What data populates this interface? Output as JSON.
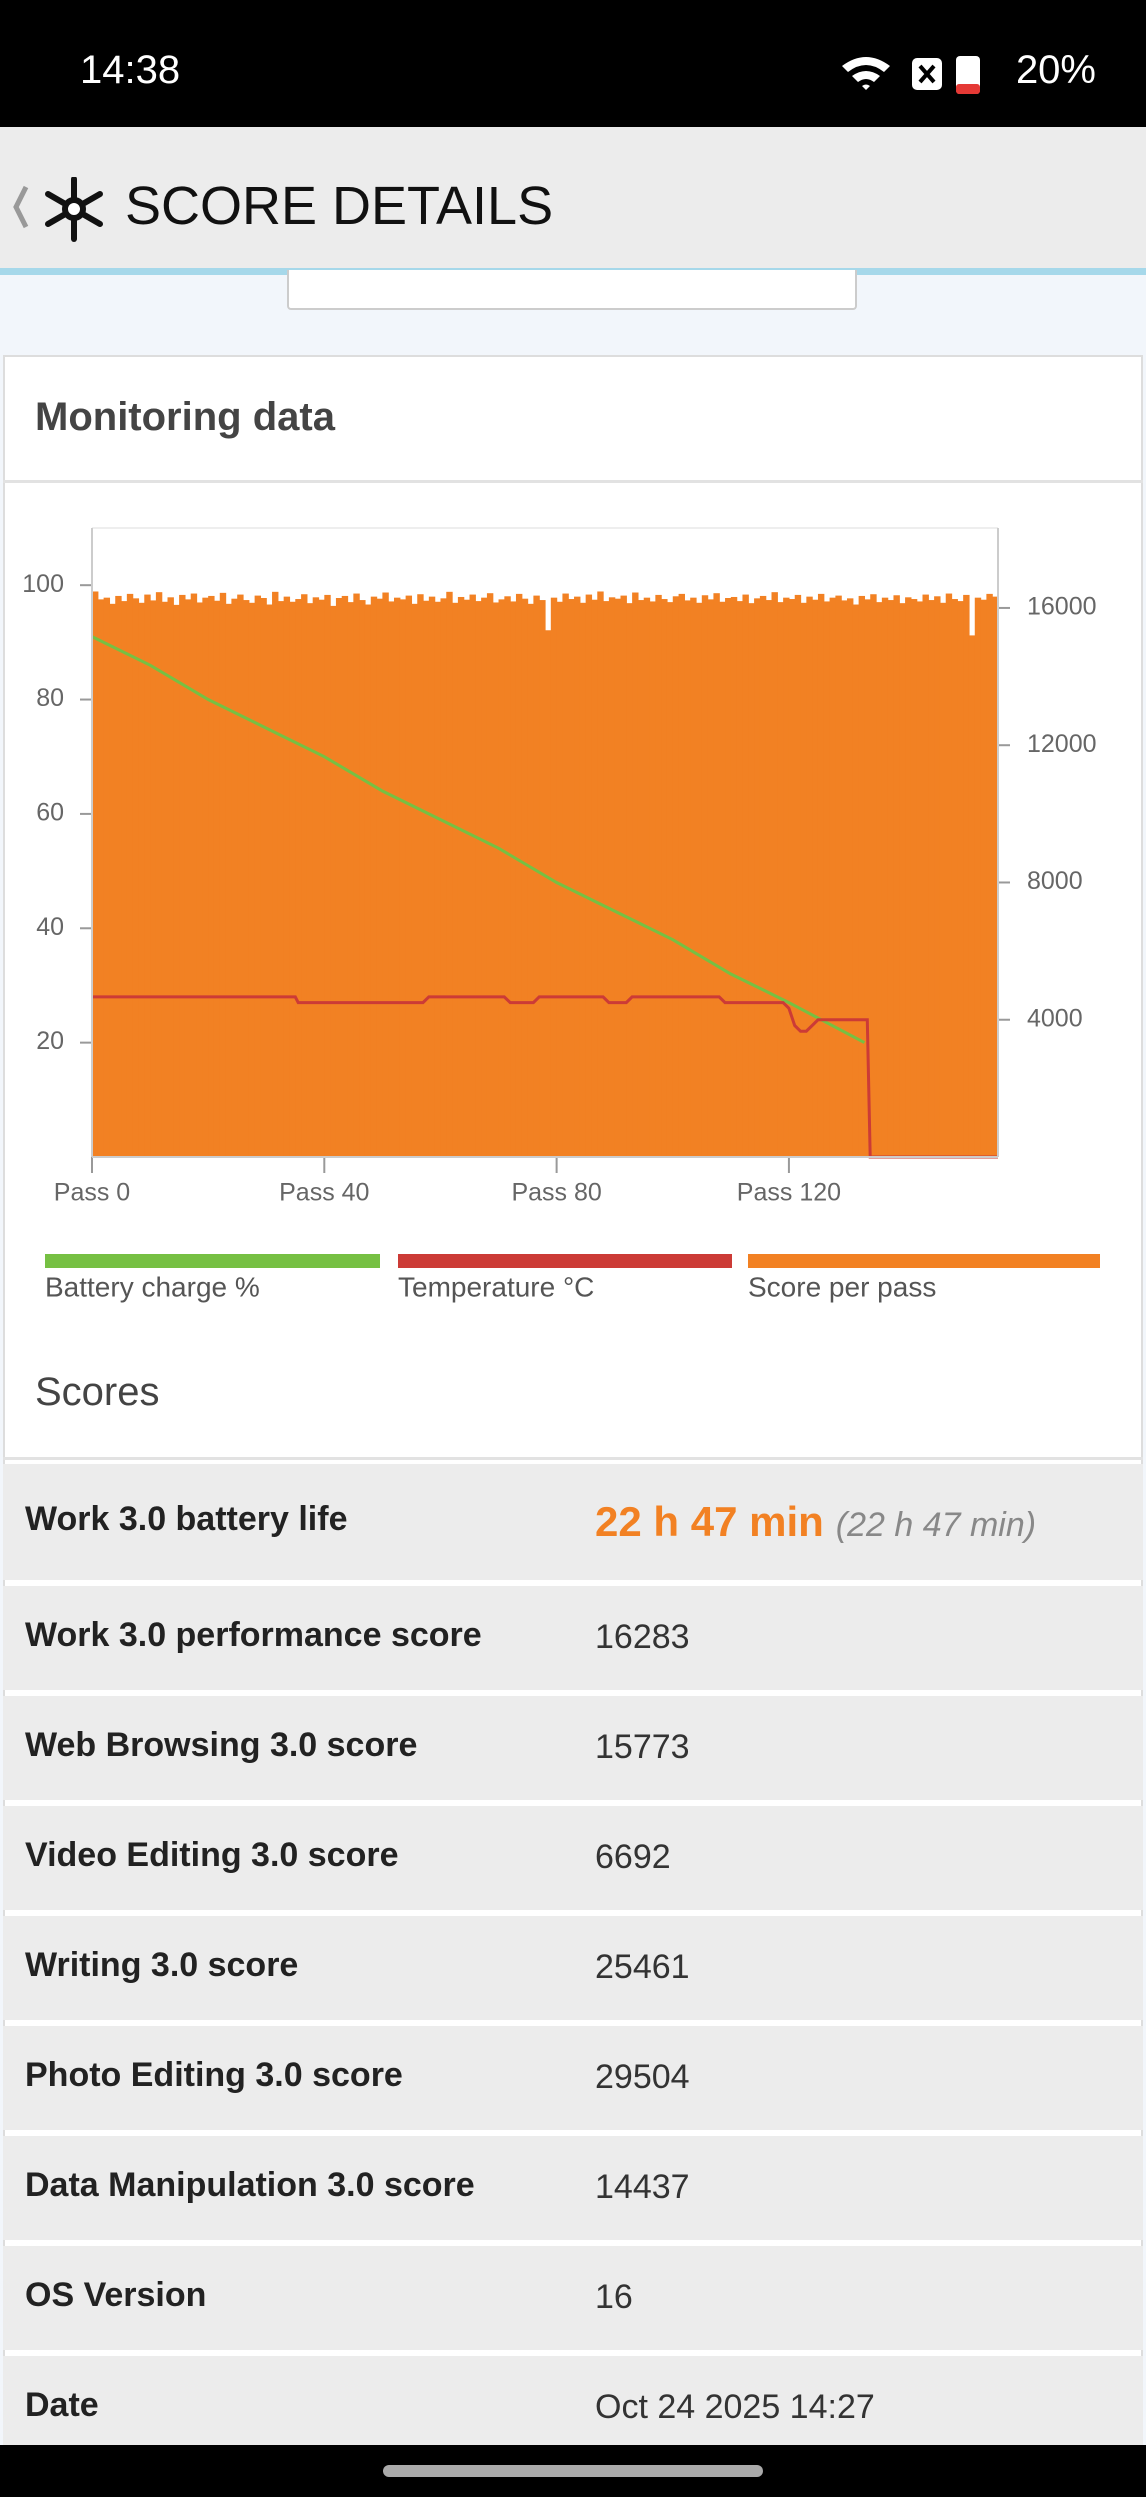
{
  "status_bar": {
    "time": "14:38",
    "battery": "20%"
  },
  "header": {
    "title": "SCORE DETAILS"
  },
  "monitoring": {
    "title": "Monitoring data"
  },
  "chart_data": {
    "type": "combo",
    "xlim": [
      0,
      156
    ],
    "xticks": [
      {
        "value": 0,
        "label": "Pass 0"
      },
      {
        "value": 40,
        "label": "Pass 40"
      },
      {
        "value": 80,
        "label": "Pass 80"
      },
      {
        "value": 120,
        "label": "Pass 120"
      }
    ],
    "ylim": [
      0,
      110
    ],
    "yticks": [
      20,
      40,
      60,
      80,
      100
    ],
    "y2lim": [
      0,
      18330
    ],
    "y2ticks": [
      4000,
      8000,
      12000,
      16000
    ],
    "series": [
      {
        "name": "Battery charge %",
        "color": "#76c043",
        "type": "line",
        "x": [
          0,
          10,
          20,
          30,
          40,
          50,
          60,
          70,
          80,
          90,
          100,
          110,
          120,
          133
        ],
        "values": [
          91,
          86,
          80,
          75,
          70,
          64,
          59,
          54,
          48,
          43,
          38,
          32,
          27,
          20
        ]
      },
      {
        "name": "Temperature °C",
        "color": "#cc3b36",
        "type": "line",
        "x": [
          0,
          35,
          35.5,
          57,
          58,
          71,
          72,
          76,
          77,
          88,
          89,
          92,
          93,
          108,
          109,
          119,
          120,
          121,
          122,
          123,
          124,
          125,
          133.5,
          134,
          156
        ],
        "values": [
          28,
          28,
          27,
          27,
          28,
          28,
          27,
          27,
          28,
          28,
          27,
          27,
          28,
          28,
          27,
          27,
          26,
          23,
          22,
          22,
          23,
          24,
          24,
          0,
          0
        ]
      },
      {
        "name": "Score per pass",
        "color": "#f28123",
        "type": "bar",
        "axis": "y2",
        "values": [
          16480,
          16250,
          16300,
          16120,
          16350,
          16200,
          16410,
          16280,
          16150,
          16390,
          16220,
          16460,
          16180,
          16310,
          16090,
          16380,
          16250,
          16420,
          16160,
          16300,
          16350,
          16210,
          16440,
          16120,
          16270,
          16390,
          16230,
          16150,
          16360,
          16290,
          16100,
          16470,
          16200,
          16330,
          16180,
          16260,
          16400,
          16140,
          16310,
          16240,
          16380,
          16060,
          16290,
          16350,
          16170,
          16420,
          16230,
          16100,
          16330,
          16270,
          16450,
          16190,
          16300,
          16250,
          16360,
          16120,
          16400,
          16210,
          16330,
          16180,
          16280,
          16470,
          16150,
          16320,
          16240,
          16390,
          16200,
          16300,
          16430,
          16160,
          16250,
          16340,
          16190,
          16410,
          16270,
          16120,
          16360,
          16230,
          15350,
          16300,
          16180,
          16420,
          16260,
          16330,
          16150,
          16390,
          16240,
          16480,
          16200,
          16310,
          16270,
          16360,
          16140,
          16450,
          16230,
          16300,
          16190,
          16380,
          16260,
          16170,
          16340,
          16410,
          16220,
          16300,
          16150,
          16370,
          16250,
          16430,
          16180,
          16290,
          16320,
          16200,
          16390,
          16140,
          16280,
          16350,
          16230,
          16460,
          16170,
          16300,
          16260,
          16380,
          16150,
          16330,
          16240,
          16410,
          16190,
          16300,
          16360,
          16220,
          16280,
          16100,
          16350,
          16250,
          16400,
          16170,
          16300,
          16230,
          16370,
          16140,
          16310,
          16260,
          16190,
          16390,
          16230,
          16340,
          16150,
          16420,
          16260,
          16200,
          16380,
          15200,
          16300,
          16240,
          16410,
          16330
        ]
      }
    ]
  },
  "scores": {
    "title": "Scores",
    "rows": [
      [
        "Work 3.0 battery life",
        "22 h 47 min",
        "(22 h 47 min)"
      ],
      [
        "Work 3.0 performance score",
        "16283"
      ],
      [
        "Web Browsing 3.0 score",
        "15773"
      ],
      [
        "Video Editing 3.0 score",
        "6692"
      ],
      [
        "Writing 3.0 score",
        "25461"
      ],
      [
        "Photo Editing 3.0 score",
        "29504"
      ],
      [
        "Data Manipulation 3.0 score",
        "14437"
      ],
      [
        "OS Version",
        "16"
      ],
      [
        "Date",
        "Oct 24 2025 14:27"
      ]
    ]
  }
}
